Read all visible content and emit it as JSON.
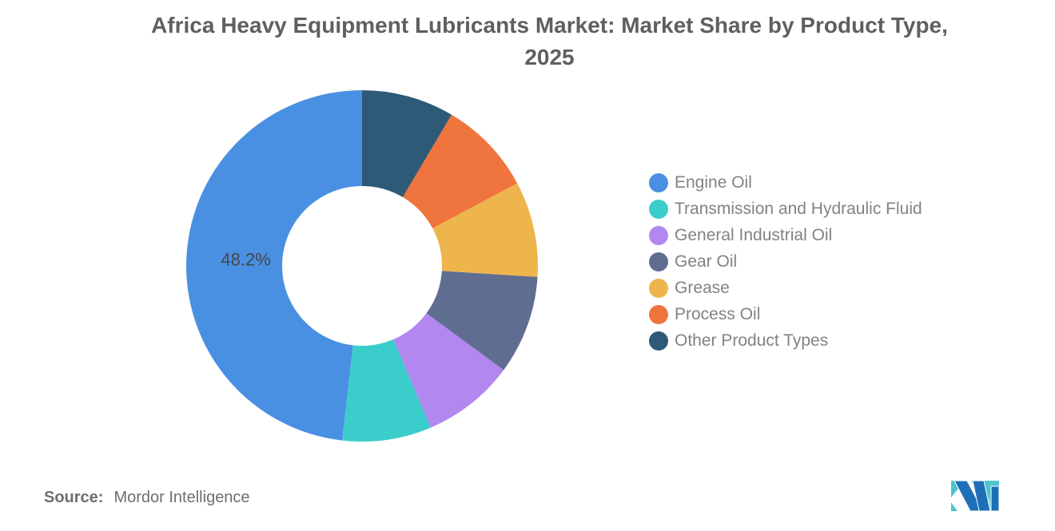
{
  "title": {
    "line1": "Africa Heavy Equipment Lubricants Market: Market Share by Product Type,",
    "line2": "2025"
  },
  "chart_data": {
    "type": "pie",
    "variant": "donut",
    "title": "Africa Heavy Equipment Lubricants Market: Market Share by Product Type, 2025",
    "categories": [
      "Engine Oil",
      "Transmission and Hydraulic Fluid",
      "General Industrial Oil",
      "Gear Oil",
      "Grease",
      "Process Oil",
      "Other Product Types"
    ],
    "values": [
      48.2,
      8.2,
      8.5,
      9.1,
      8.8,
      8.7,
      8.5
    ],
    "colors": [
      "#4A90E2",
      "#3BCDCB",
      "#B287F0",
      "#5F6D90",
      "#EDB54B",
      "#F0743D",
      "#2E5A78"
    ],
    "data_labels": [
      "48.2%",
      "",
      "",
      "",
      "",
      "",
      ""
    ],
    "units": "percent",
    "start_angle_deg": 0,
    "direction": "counterclockwise",
    "inner_radius_ratio": 0.455,
    "legend_position": "right",
    "label_color": "#43474b"
  },
  "source": {
    "label": "Source:",
    "value": "Mordor Intelligence"
  },
  "logo": {
    "name": "Mordor Intelligence",
    "blue": "#1D70B7",
    "teal": "#4EC3D0"
  }
}
